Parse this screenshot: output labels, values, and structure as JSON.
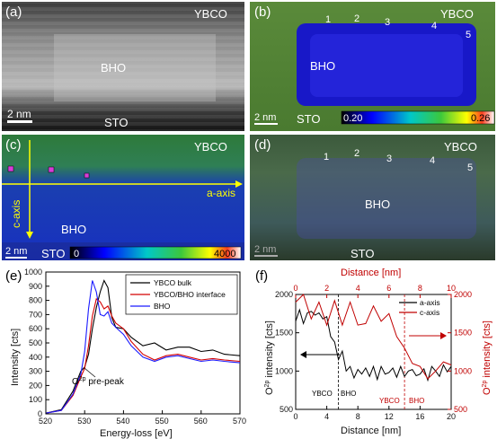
{
  "panels": {
    "a": {
      "label": "(a)",
      "top": "YBCO",
      "middle": "BHO",
      "bottom": "STO",
      "scale": "2 nm"
    },
    "b": {
      "label": "(b)",
      "top": "YBCO",
      "middle": "BHO",
      "bottom": "STO",
      "scale": "2 nm",
      "markers": [
        "1",
        "2",
        "3",
        "4",
        "5"
      ],
      "colorbar_min": "0.20",
      "colorbar_max": "0.26"
    },
    "c": {
      "label": "(c)",
      "top": "YBCO",
      "middle": "BHO",
      "bottom": "STO",
      "scale": "2 nm",
      "a_axis": "a-axis",
      "c_axis": "c-axis",
      "colorbar_min": "0",
      "colorbar_max": "4000"
    },
    "d": {
      "label": "(d)",
      "top": "YBCO",
      "middle": "BHO",
      "bottom": "STO",
      "scale": "2 nm",
      "markers": [
        "1",
        "2",
        "3",
        "4",
        "5"
      ]
    },
    "e": {
      "label": "(e)",
      "annotation": "O",
      "annotation_sup": "2p",
      "annotation_rest": " pre-peak"
    },
    "f": {
      "label": "(f)",
      "region_left_a": "YBCO",
      "region_right_a": "BHO",
      "region_left_b": "YBCO",
      "region_right_b": "BHO"
    }
  },
  "chart_data": [
    {
      "type": "line",
      "panel": "e",
      "xlabel": "Energy-loss [eV]",
      "ylabel": "Intensity [cts]",
      "xlim": [
        520,
        570
      ],
      "ylim": [
        0,
        1000
      ],
      "xticks": [
        520,
        530,
        540,
        550,
        560,
        570
      ],
      "yticks": [
        0,
        100,
        200,
        300,
        400,
        500,
        600,
        700,
        800,
        900,
        1000
      ],
      "legend_position": "top-right",
      "series": [
        {
          "name": "YBCO bulk",
          "color": "#000000",
          "x": [
            520,
            524,
            527,
            529,
            530,
            531,
            532,
            533,
            534,
            535,
            536,
            537,
            538,
            540,
            542,
            545,
            548,
            551,
            554,
            557,
            560,
            563,
            566,
            570
          ],
          "y": [
            5,
            30,
            160,
            300,
            330,
            420,
            600,
            750,
            860,
            940,
            890,
            680,
            610,
            600,
            540,
            480,
            500,
            450,
            470,
            470,
            440,
            450,
            420,
            410
          ]
        },
        {
          "name": "YBCO/BHO interface",
          "color": "#d40000",
          "x": [
            520,
            524,
            527,
            529,
            530,
            531,
            532,
            533,
            534,
            535,
            536,
            537,
            538,
            540,
            542,
            545,
            548,
            551,
            554,
            557,
            560,
            563,
            566,
            570
          ],
          "y": [
            5,
            25,
            130,
            260,
            320,
            480,
            690,
            810,
            790,
            740,
            760,
            690,
            640,
            600,
            510,
            420,
            380,
            410,
            420,
            400,
            380,
            390,
            380,
            370
          ]
        },
        {
          "name": "BHO",
          "color": "#1a1aff",
          "x": [
            520,
            524,
            527,
            529,
            530,
            531,
            532,
            533,
            534,
            535,
            536,
            537,
            538,
            540,
            542,
            545,
            548,
            551,
            554,
            557,
            560,
            563,
            566,
            570
          ],
          "y": [
            5,
            25,
            140,
            280,
            440,
            740,
            940,
            860,
            700,
            690,
            720,
            640,
            610,
            560,
            480,
            400,
            370,
            400,
            410,
            390,
            370,
            380,
            370,
            360
          ]
        }
      ]
    },
    {
      "type": "line",
      "panel": "f",
      "xlabel": "Distance [nm]",
      "ylabel": "O2p intensity [cts]",
      "xlabel_top": "Distance [nm]",
      "ylabel_right": "O2p intensity [cts]",
      "xlim": [
        0,
        20
      ],
      "ylim": [
        500,
        2000
      ],
      "xlim_top": [
        0,
        10
      ],
      "ylim_right": [
        500,
        2000
      ],
      "xticks": [
        0,
        4,
        8,
        12,
        16,
        20
      ],
      "xticks_top": [
        0,
        2,
        4,
        6,
        8,
        10
      ],
      "yticks": [
        500,
        1000,
        1500,
        2000
      ],
      "legend_position": "top-right",
      "markers": {
        "left_boundary_nm": 5.5,
        "right_boundary_nm": 7.0
      },
      "series": [
        {
          "name": "a-axis",
          "color": "#000000",
          "axis": "bottom-left",
          "x": [
            0,
            0.5,
            1,
            1.5,
            2,
            2.5,
            3,
            3.5,
            4,
            4.5,
            5,
            5.5,
            6,
            6.5,
            7,
            7.5,
            8,
            8.5,
            9,
            9.5,
            10,
            10.5,
            11,
            11.5,
            12,
            12.5,
            13,
            13.5,
            14,
            14.5,
            15,
            15.5,
            16,
            16.5,
            17,
            17.5,
            18,
            18.5,
            19,
            19.5,
            20
          ],
          "y": [
            1650,
            1800,
            1620,
            1760,
            1780,
            1730,
            1760,
            1680,
            1710,
            1450,
            1380,
            1150,
            1260,
            1000,
            1060,
            910,
            1020,
            960,
            1040,
            930,
            1060,
            890,
            1060,
            960,
            980,
            1040,
            920,
            1060,
            930,
            1000,
            1020,
            940,
            960,
            1030,
            880,
            1060,
            1000,
            930,
            1080,
            990,
            1060
          ]
        },
        {
          "name": "c-axis",
          "color": "#c00000",
          "axis": "top-right",
          "x": [
            0,
            0.5,
            1,
            1.5,
            2,
            2.5,
            3,
            3.5,
            4,
            4.5,
            5,
            5.5,
            6,
            6.5,
            7,
            7.5,
            8,
            8.5,
            9,
            9.5,
            10
          ],
          "y": [
            1900,
            2050,
            1680,
            1900,
            1600,
            1920,
            1600,
            1900,
            1600,
            1620,
            1850,
            1650,
            1750,
            1450,
            1300,
            1100,
            1060,
            900,
            1000,
            1120,
            1080
          ]
        }
      ]
    }
  ]
}
